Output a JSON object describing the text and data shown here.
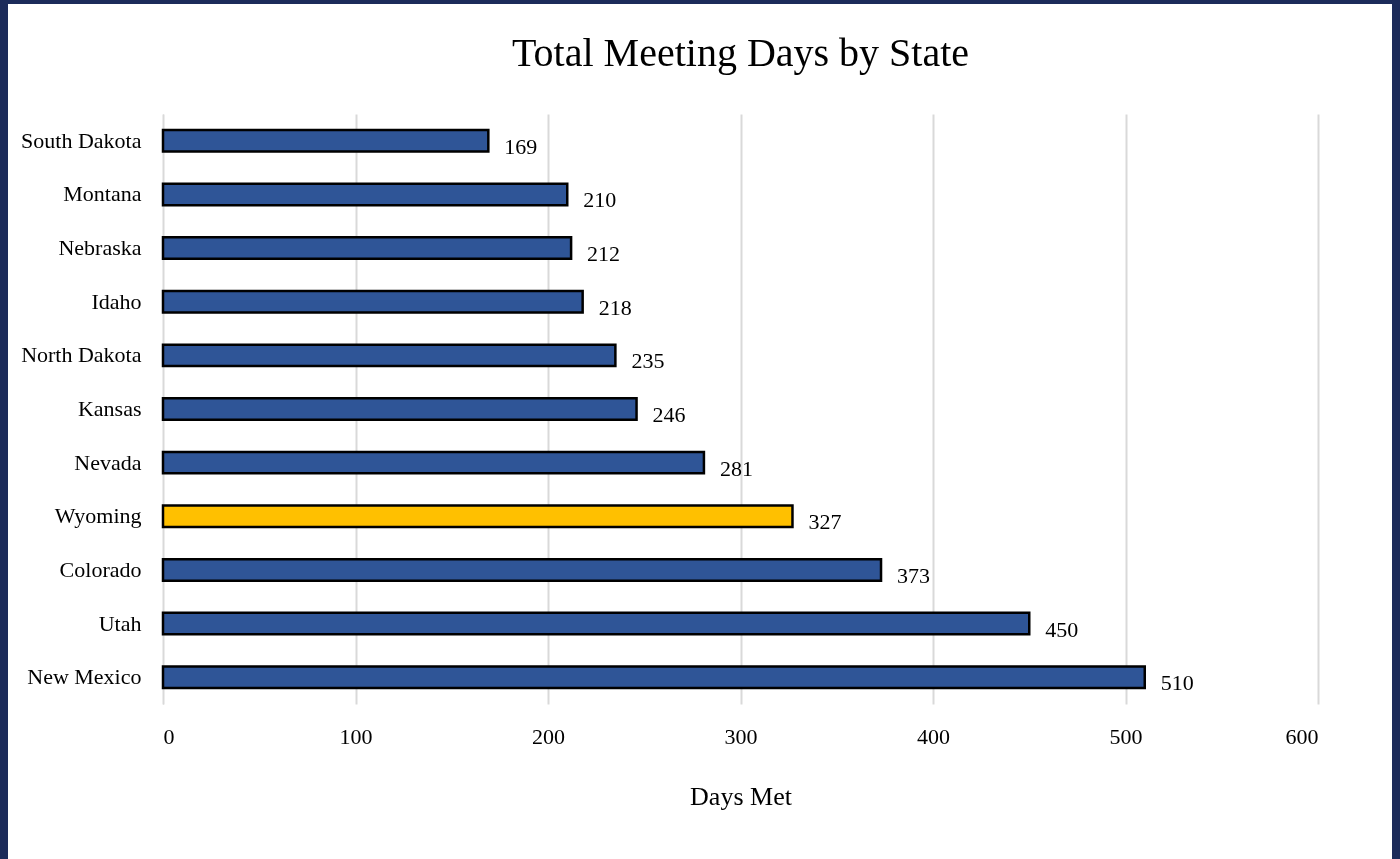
{
  "chart_data": {
    "type": "bar",
    "orientation": "horizontal",
    "title": "Total Meeting Days by State",
    "xlabel": "Days Met",
    "categories": [
      "South Dakota",
      "Montana",
      "Nebraska",
      "Idaho",
      "North Dakota",
      "Kansas",
      "Nevada",
      "Wyoming",
      "Colorado",
      "Utah",
      "New Mexico"
    ],
    "values": [
      169,
      210,
      212,
      218,
      235,
      246,
      281,
      327,
      373,
      450,
      510
    ],
    "colors": [
      "#2f5597",
      "#2f5597",
      "#2f5597",
      "#2f5597",
      "#2f5597",
      "#2f5597",
      "#2f5597",
      "#ffc000",
      "#2f5597",
      "#2f5597",
      "#2f5597"
    ],
    "xlim": [
      0,
      600
    ],
    "xticks": [
      0,
      100,
      200,
      300,
      400,
      500,
      600
    ],
    "grid": "x",
    "data_labels": true
  }
}
